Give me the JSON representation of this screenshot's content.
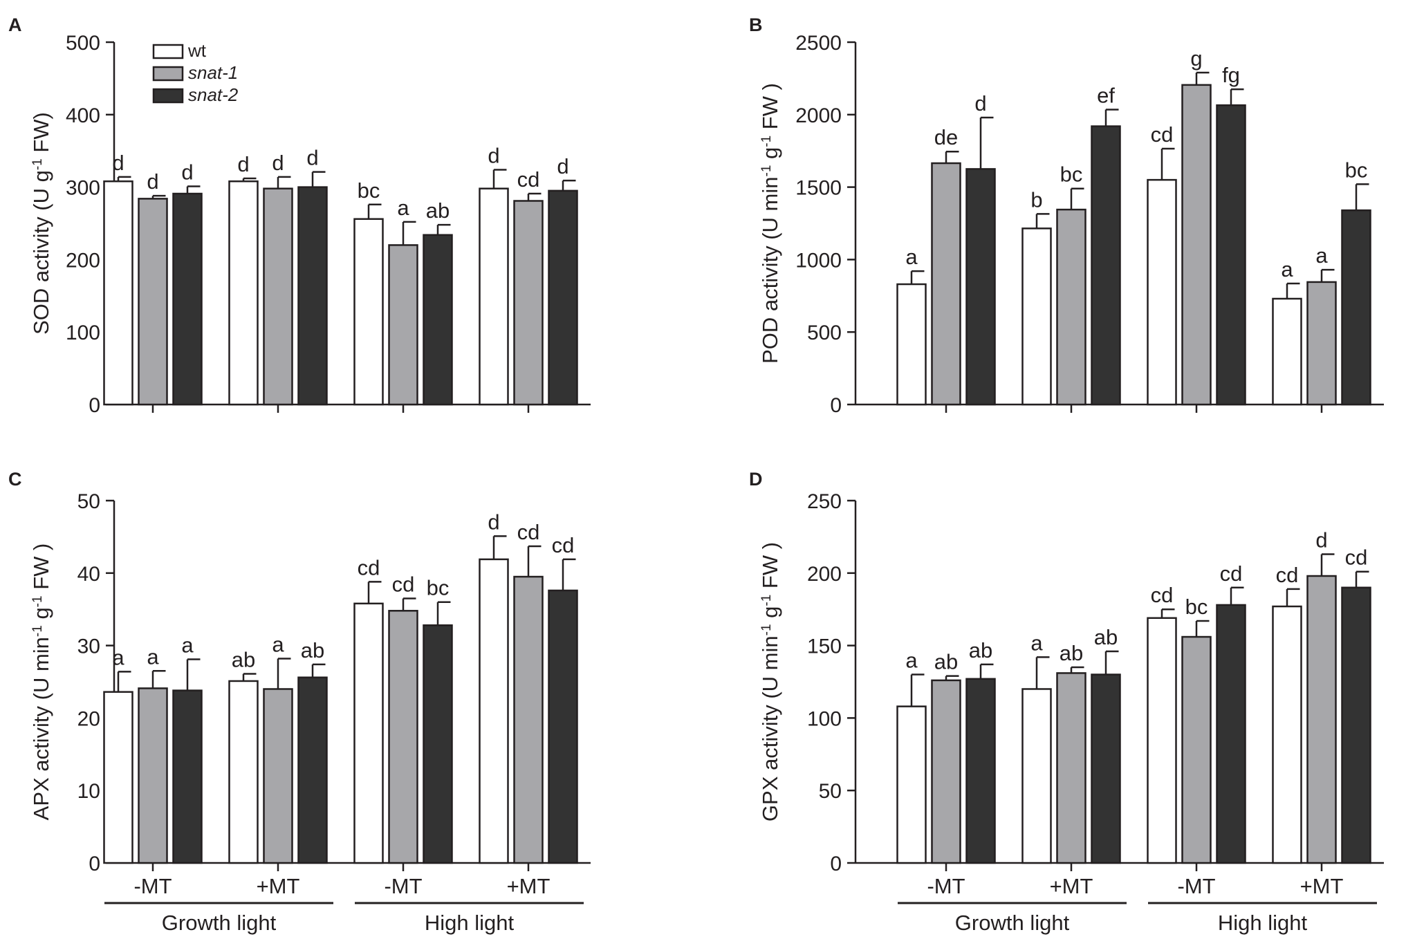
{
  "chart_data": [
    {
      "type": "bar",
      "panel": "A",
      "ylabel": {
        "prefix": "SOD activity (U g",
        "sup": "-1",
        "suffix": " FW)"
      },
      "ylim": [
        0,
        500
      ],
      "yticks": [
        0,
        100,
        200,
        300,
        400,
        500
      ],
      "series_names": [
        "wt",
        "snat-1",
        "snat-2"
      ],
      "groups": [
        {
          "values": [
            308,
            284,
            291
          ],
          "errors": [
            6,
            4,
            10
          ],
          "letters": [
            "d",
            "d",
            "d"
          ]
        },
        {
          "values": [
            308,
            298,
            300
          ],
          "errors": [
            4,
            16,
            21
          ],
          "letters": [
            "d",
            "d",
            "d"
          ]
        },
        {
          "values": [
            256,
            220,
            234
          ],
          "errors": [
            20,
            32,
            14
          ],
          "letters": [
            "bc",
            "a",
            "ab"
          ]
        },
        {
          "values": [
            298,
            281,
            295
          ],
          "errors": [
            26,
            10,
            14
          ],
          "letters": [
            "d",
            "cd",
            "d"
          ]
        }
      ],
      "show_legend": true,
      "show_x_labels": false
    },
    {
      "type": "bar",
      "panel": "B",
      "ylabel": {
        "prefix": "POD activity (U min",
        "sup1": "-1",
        "mid": " g",
        "sup2": "-1",
        "suffix": " FW )"
      },
      "ylim": [
        0,
        2500
      ],
      "yticks": [
        0,
        500,
        1000,
        1500,
        2000,
        2500
      ],
      "series_names": [
        "wt",
        "snat-1",
        "snat-2"
      ],
      "groups": [
        {
          "values": [
            830,
            1665,
            1625
          ],
          "errors": [
            90,
            80,
            355
          ],
          "letters": [
            "a",
            "de",
            "d"
          ]
        },
        {
          "values": [
            1215,
            1345,
            1920
          ],
          "errors": [
            100,
            145,
            115
          ],
          "letters": [
            "b",
            "bc",
            "ef"
          ]
        },
        {
          "values": [
            1550,
            2205,
            2065
          ],
          "errors": [
            215,
            85,
            110
          ],
          "letters": [
            "cd",
            "g",
            "fg"
          ]
        },
        {
          "values": [
            730,
            845,
            1340
          ],
          "errors": [
            105,
            85,
            180
          ],
          "letters": [
            "a",
            "a",
            "bc"
          ]
        }
      ],
      "show_legend": false,
      "show_x_labels": false
    },
    {
      "type": "bar",
      "panel": "C",
      "ylabel": {
        "prefix": "APX activity (U min",
        "sup1": "-1",
        "mid": " g",
        "sup2": "-1",
        "suffix": " FW )"
      },
      "ylim": [
        0,
        50
      ],
      "yticks": [
        0,
        10,
        20,
        30,
        40,
        50
      ],
      "series_names": [
        "wt",
        "snat-1",
        "snat-2"
      ],
      "groups": [
        {
          "values": [
            23.6,
            24.1,
            23.8
          ],
          "errors": [
            2.8,
            2.4,
            4.3
          ],
          "letters": [
            "a",
            "a",
            "a"
          ]
        },
        {
          "values": [
            25.1,
            24.0,
            25.6
          ],
          "errors": [
            1.0,
            4.2,
            1.8
          ],
          "letters": [
            "ab",
            "a",
            "ab"
          ]
        },
        {
          "values": [
            35.8,
            34.8,
            32.8
          ],
          "errors": [
            3.0,
            1.7,
            3.2
          ],
          "letters": [
            "cd",
            "cd",
            "bc"
          ]
        },
        {
          "values": [
            41.9,
            39.5,
            37.6
          ],
          "errors": [
            3.2,
            4.2,
            4.3
          ],
          "letters": [
            "d",
            "cd",
            "cd"
          ]
        }
      ],
      "show_legend": false,
      "show_x_labels": true
    },
    {
      "type": "bar",
      "panel": "D",
      "ylabel": {
        "prefix": "GPX activity (U min",
        "sup1": "-1",
        "mid": " g",
        "sup2": "-1",
        "suffix": " FW )"
      },
      "ylim": [
        0,
        250
      ],
      "yticks": [
        0,
        50,
        100,
        150,
        200,
        250
      ],
      "series_names": [
        "wt",
        "snat-1",
        "snat-2"
      ],
      "groups": [
        {
          "values": [
            108,
            126,
            127
          ],
          "errors": [
            22,
            3,
            10
          ],
          "letters": [
            "a",
            "ab",
            "ab"
          ]
        },
        {
          "values": [
            120,
            131,
            130
          ],
          "errors": [
            22,
            4,
            16
          ],
          "letters": [
            "a",
            "ab",
            "ab"
          ]
        },
        {
          "values": [
            169,
            156,
            178
          ],
          "errors": [
            6,
            11,
            12
          ],
          "letters": [
            "cd",
            "bc",
            "cd"
          ]
        },
        {
          "values": [
            177,
            198,
            190
          ],
          "errors": [
            12,
            15,
            11
          ],
          "letters": [
            "cd",
            "d",
            "cd"
          ]
        }
      ],
      "show_legend": false,
      "show_x_labels": true
    }
  ],
  "legend": [
    {
      "label": "wt",
      "color": "#ffffff",
      "italic": false
    },
    {
      "label": "snat-1",
      "color": "#a7a7aa",
      "italic": true
    },
    {
      "label": "snat-2",
      "color": "#333333",
      "italic": true
    }
  ],
  "x_labels": {
    "treatments": [
      "-MT",
      "+MT",
      "-MT",
      "+MT"
    ],
    "light_conditions": [
      "Growth light",
      "High light"
    ]
  },
  "colors": {
    "wt": "#ffffff",
    "snat1": "#a7a7aa",
    "snat2": "#333333",
    "axis": "#231f20"
  }
}
